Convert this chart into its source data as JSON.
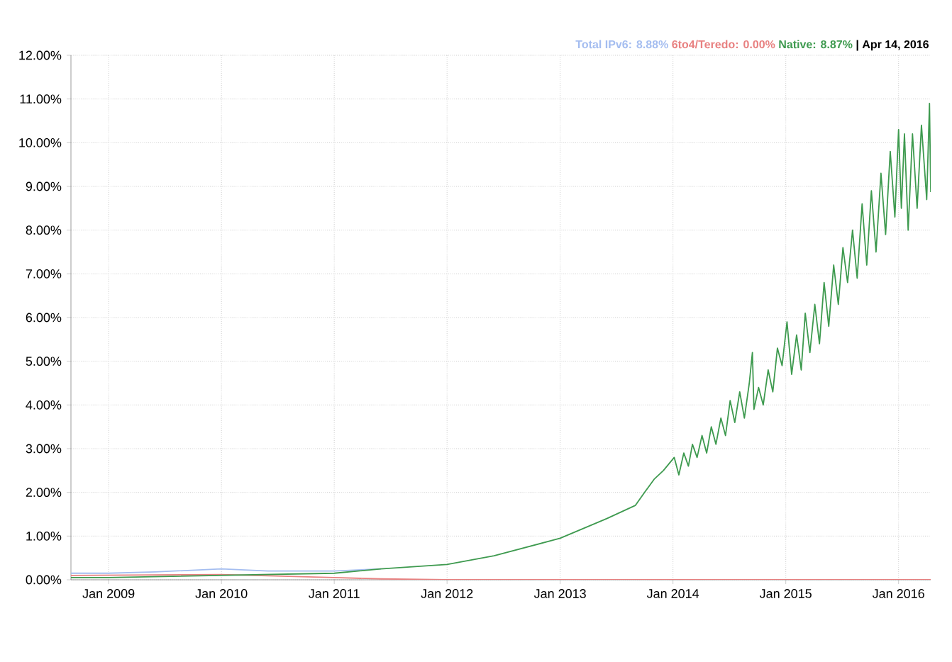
{
  "chart_data": {
    "type": "line",
    "xlim": [
      "2008-09-01",
      "2016-04-14"
    ],
    "ylim": [
      0,
      12
    ],
    "xticks": [
      {
        "value": "2009-01-01",
        "label": "Jan 2009"
      },
      {
        "value": "2010-01-01",
        "label": "Jan 2010"
      },
      {
        "value": "2011-01-01",
        "label": "Jan 2011"
      },
      {
        "value": "2012-01-01",
        "label": "Jan 2012"
      },
      {
        "value": "2013-01-01",
        "label": "Jan 2013"
      },
      {
        "value": "2014-01-01",
        "label": "Jan 2014"
      },
      {
        "value": "2015-01-01",
        "label": "Jan 2015"
      },
      {
        "value": "2016-01-01",
        "label": "Jan 2016"
      }
    ],
    "yticks": [
      {
        "value": 0,
        "label": "0.00%"
      },
      {
        "value": 1,
        "label": "1.00%"
      },
      {
        "value": 2,
        "label": "2.00%"
      },
      {
        "value": 3,
        "label": "3.00%"
      },
      {
        "value": 4,
        "label": "4.00%"
      },
      {
        "value": 5,
        "label": "5.00%"
      },
      {
        "value": 6,
        "label": "6.00%"
      },
      {
        "value": 7,
        "label": "7.00%"
      },
      {
        "value": 8,
        "label": "8.00%"
      },
      {
        "value": 9,
        "label": "9.00%"
      },
      {
        "value": 10,
        "label": "10.00%"
      },
      {
        "value": 11,
        "label": "11.00%"
      },
      {
        "value": 12,
        "label": "12.00%"
      }
    ],
    "grid": true,
    "annotations": [
      "| Apr 14, 2016"
    ],
    "series": [
      {
        "name": "Total IPv6: 8.88%",
        "color": "#a4bdf0",
        "x": [
          "2008-09-01",
          "2009-01-01",
          "2009-06-01",
          "2010-01-01",
          "2010-06-01",
          "2011-01-01",
          "2011-06-01"
        ],
        "values": [
          0.15,
          0.15,
          0.18,
          0.25,
          0.2,
          0.2,
          0.25
        ]
      },
      {
        "name": "6to4/Teredo: 0.00%",
        "color": "#e88080",
        "x": [
          "2008-09-01",
          "2010-01-01",
          "2011-01-01",
          "2011-06-01",
          "2012-01-01",
          "2016-04-14"
        ],
        "values": [
          0.1,
          0.12,
          0.05,
          0.02,
          0,
          0
        ]
      },
      {
        "name": "Native: 8.87%",
        "color": "#3e9a4f",
        "x": [
          "2008-09-01",
          "2009-01-01",
          "2010-01-01",
          "2011-01-01",
          "2011-06-01",
          "2012-01-01",
          "2012-06-01",
          "2013-01-01",
          "2013-06-01",
          "2013-09-01",
          "2013-10-01",
          "2013-11-01",
          "2013-12-01",
          "2014-01-05",
          "2014-01-20",
          "2014-02-05",
          "2014-02-20",
          "2014-03-05",
          "2014-03-20",
          "2014-04-05",
          "2014-04-20",
          "2014-05-05",
          "2014-05-20",
          "2014-06-05",
          "2014-06-20",
          "2014-07-05",
          "2014-07-20",
          "2014-08-05",
          "2014-08-20",
          "2014-09-05",
          "2014-09-15",
          "2014-09-20",
          "2014-10-05",
          "2014-10-20",
          "2014-11-05",
          "2014-11-20",
          "2014-12-05",
          "2014-12-20",
          "2015-01-05",
          "2015-01-20",
          "2015-02-05",
          "2015-02-20",
          "2015-03-05",
          "2015-03-20",
          "2015-04-05",
          "2015-04-20",
          "2015-05-05",
          "2015-05-20",
          "2015-06-05",
          "2015-06-20",
          "2015-07-05",
          "2015-07-20",
          "2015-08-05",
          "2015-08-20",
          "2015-09-05",
          "2015-09-20",
          "2015-10-05",
          "2015-10-20",
          "2015-11-05",
          "2015-11-20",
          "2015-12-05",
          "2015-12-20",
          "2016-01-01",
          "2016-01-10",
          "2016-01-20",
          "2016-02-01",
          "2016-02-15",
          "2016-03-01",
          "2016-03-15",
          "2016-04-01",
          "2016-04-10",
          "2016-04-14"
        ],
        "values": [
          0.05,
          0.05,
          0.1,
          0.15,
          0.25,
          0.35,
          0.55,
          0.95,
          1.4,
          1.7,
          2.0,
          2.3,
          2.5,
          2.8,
          2.4,
          2.9,
          2.6,
          3.1,
          2.8,
          3.3,
          2.9,
          3.5,
          3.1,
          3.7,
          3.3,
          4.1,
          3.6,
          4.3,
          3.7,
          4.5,
          5.2,
          3.9,
          4.4,
          4.0,
          4.8,
          4.3,
          5.3,
          4.9,
          5.9,
          4.7,
          5.6,
          4.8,
          6.1,
          5.2,
          6.3,
          5.4,
          6.8,
          5.8,
          7.2,
          6.3,
          7.6,
          6.8,
          8.0,
          6.9,
          8.6,
          7.2,
          8.9,
          7.5,
          9.3,
          7.9,
          9.8,
          8.3,
          10.3,
          8.5,
          10.2,
          8.0,
          10.2,
          8.5,
          10.4,
          8.7,
          10.9,
          8.87
        ]
      }
    ]
  }
}
